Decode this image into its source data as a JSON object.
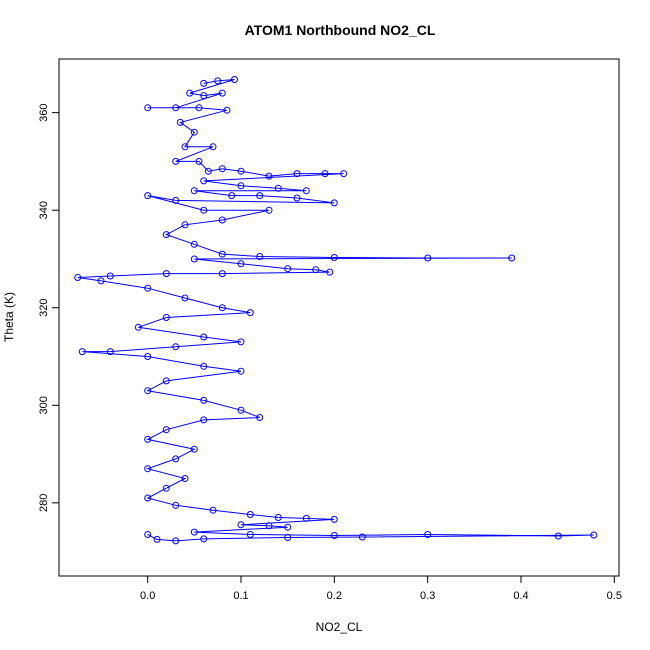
{
  "chart_data": {
    "type": "scatter",
    "title": "ATOM1 Northbound NO2_CL",
    "xlabel": "NO2_CL",
    "ylabel": "Theta (K)",
    "xlim": [
      -0.095,
      0.505
    ],
    "ylim": [
      265,
      371
    ],
    "x_ticks": [
      0.0,
      0.1,
      0.2,
      0.3,
      0.4,
      0.5
    ],
    "x_tick_labels": [
      "0.0",
      "0.1",
      "0.2",
      "0.3",
      "0.4",
      "0.5"
    ],
    "y_ticks": [
      280,
      300,
      320,
      340,
      360
    ],
    "y_tick_labels": [
      "280",
      "300",
      "320",
      "340",
      "360"
    ],
    "grid": false,
    "legend": "none",
    "marker": "open-circle",
    "connect_points": true,
    "color": "#0000ff",
    "series": [
      {
        "points": [
          [
            0.06,
            366
          ],
          [
            0.075,
            366.5
          ],
          [
            0.093,
            366.8
          ],
          [
            0.045,
            364
          ],
          [
            0.06,
            363.5
          ],
          [
            0.08,
            364
          ],
          [
            0.03,
            361
          ],
          [
            0.0,
            361
          ],
          [
            0.055,
            361
          ],
          [
            0.085,
            360.5
          ],
          [
            0.035,
            358
          ],
          [
            0.05,
            356
          ],
          [
            0.04,
            353
          ],
          [
            0.07,
            353
          ],
          [
            0.03,
            350
          ],
          [
            0.055,
            350
          ],
          [
            0.065,
            348
          ],
          [
            0.08,
            348.5
          ],
          [
            0.1,
            348
          ],
          [
            0.13,
            347
          ],
          [
            0.16,
            347.5
          ],
          [
            0.19,
            347.5
          ],
          [
            0.21,
            347.5
          ],
          [
            0.06,
            346
          ],
          [
            0.1,
            345
          ],
          [
            0.14,
            344.5
          ],
          [
            0.17,
            344
          ],
          [
            0.05,
            344
          ],
          [
            0.09,
            343
          ],
          [
            0.12,
            343
          ],
          [
            0.16,
            342.5
          ],
          [
            0.2,
            341.5
          ],
          [
            0.03,
            342
          ],
          [
            0.0,
            343
          ],
          [
            0.06,
            340
          ],
          [
            0.13,
            340
          ],
          [
            0.08,
            338
          ],
          [
            0.04,
            337
          ],
          [
            0.02,
            335
          ],
          [
            0.05,
            333
          ],
          [
            0.08,
            331
          ],
          [
            0.12,
            330.5
          ],
          [
            0.2,
            330.3
          ],
          [
            0.3,
            330.2
          ],
          [
            0.39,
            330.2
          ],
          [
            0.05,
            330
          ],
          [
            0.1,
            329
          ],
          [
            0.15,
            328
          ],
          [
            0.18,
            327.8
          ],
          [
            0.195,
            327.3
          ],
          [
            0.08,
            327
          ],
          [
            0.02,
            327
          ],
          [
            -0.04,
            326.5
          ],
          [
            -0.075,
            326.2
          ],
          [
            -0.05,
            325.5
          ],
          [
            0.0,
            324
          ],
          [
            0.04,
            322
          ],
          [
            0.08,
            320
          ],
          [
            0.11,
            319
          ],
          [
            0.02,
            318
          ],
          [
            -0.01,
            316
          ],
          [
            0.06,
            314
          ],
          [
            0.1,
            313
          ],
          [
            0.03,
            312
          ],
          [
            -0.04,
            311
          ],
          [
            -0.07,
            311
          ],
          [
            0.0,
            310
          ],
          [
            0.06,
            308
          ],
          [
            0.1,
            307
          ],
          [
            0.02,
            305
          ],
          [
            0.0,
            303
          ],
          [
            0.06,
            301
          ],
          [
            0.1,
            299
          ],
          [
            0.12,
            297.5
          ],
          [
            0.06,
            297
          ],
          [
            0.02,
            295
          ],
          [
            0.0,
            293
          ],
          [
            0.05,
            291
          ],
          [
            0.03,
            289
          ],
          [
            0.0,
            287
          ],
          [
            0.04,
            285
          ],
          [
            0.02,
            283
          ],
          [
            0.0,
            281
          ],
          [
            0.03,
            279.5
          ],
          [
            0.07,
            278.5
          ],
          [
            0.11,
            277.6
          ],
          [
            0.14,
            277
          ],
          [
            0.17,
            276.8
          ],
          [
            0.2,
            276.6
          ],
          [
            0.1,
            275.5
          ],
          [
            0.13,
            275.3
          ],
          [
            0.15,
            275
          ],
          [
            0.05,
            274
          ],
          [
            0.11,
            273.5
          ],
          [
            0.2,
            273.3
          ],
          [
            0.3,
            273.5
          ],
          [
            0.44,
            273.2
          ],
          [
            0.478,
            273.4
          ],
          [
            0.23,
            273
          ],
          [
            0.15,
            272.9
          ],
          [
            0.06,
            272.6
          ],
          [
            0.03,
            272.2
          ],
          [
            0.01,
            272.5
          ],
          [
            0.0,
            273.5
          ]
        ]
      }
    ]
  }
}
